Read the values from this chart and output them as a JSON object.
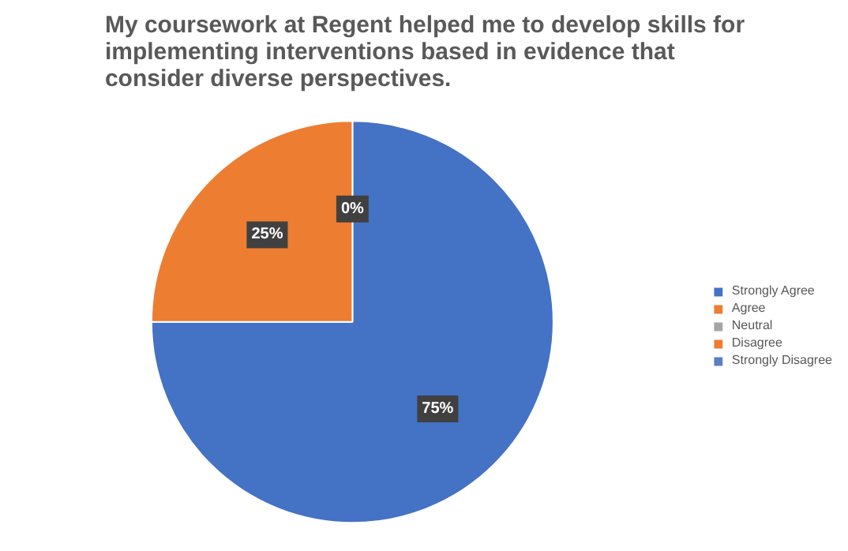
{
  "chart_data": {
    "type": "pie",
    "title": "My coursework at Regent helped me to develop skills for implementing interventions based in evidence that consider diverse perspectives.",
    "categories": [
      "Strongly Agree",
      "Agree",
      "Neutral",
      "Disagree",
      "Strongly Disagree"
    ],
    "values": [
      75,
      25,
      0,
      0,
      0
    ],
    "colors": [
      "#4472c4",
      "#ed7d31",
      "#a5a5a5",
      "#ed7d31",
      "#5b7fc4"
    ],
    "value_labels": [
      "75%",
      "25%",
      "0%",
      null,
      null
    ],
    "legend": "right"
  }
}
